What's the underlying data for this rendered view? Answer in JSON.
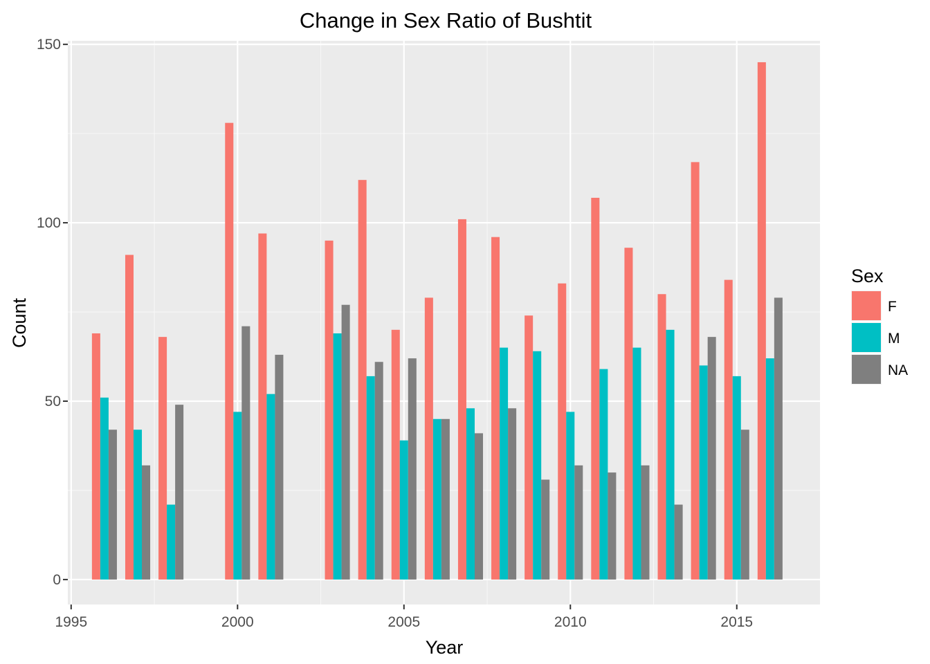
{
  "chart_data": {
    "type": "bar",
    "title": "Change in Sex Ratio of Bushtit",
    "xlabel": "Year",
    "ylabel": "Count",
    "x_ticks": [
      "1995",
      "2000",
      "2005",
      "2010",
      "2015"
    ],
    "y_ticks": [
      "0",
      "50",
      "100",
      "150"
    ],
    "xlim": [
      1994.9,
      2017.5
    ],
    "ylim": [
      -7,
      151
    ],
    "grid": true,
    "legend": {
      "title": "Sex",
      "position": "right",
      "entries": [
        "F",
        "M",
        "NA"
      ]
    },
    "categories": [
      1996,
      1997,
      1998,
      1999,
      2000,
      2001,
      2002,
      2003,
      2004,
      2005,
      2006,
      2007,
      2008,
      2009,
      2010,
      2011,
      2012,
      2013,
      2014,
      2015,
      2016
    ],
    "series": [
      {
        "name": "F",
        "color": "#F8766D",
        "values": [
          69,
          91,
          68,
          null,
          128,
          97,
          null,
          95,
          112,
          70,
          79,
          101,
          96,
          74,
          83,
          107,
          93,
          80,
          117,
          84,
          145
        ]
      },
      {
        "name": "M",
        "color": "#00BFC4",
        "values": [
          51,
          42,
          21,
          null,
          47,
          52,
          null,
          69,
          57,
          39,
          45,
          48,
          65,
          64,
          47,
          59,
          65,
          70,
          60,
          57,
          62
        ]
      },
      {
        "name": "NA",
        "color": "#7F7F7F",
        "values": [
          42,
          32,
          49,
          null,
          71,
          63,
          null,
          77,
          61,
          62,
          45,
          41,
          48,
          28,
          32,
          30,
          32,
          21,
          68,
          42,
          79
        ]
      }
    ]
  }
}
